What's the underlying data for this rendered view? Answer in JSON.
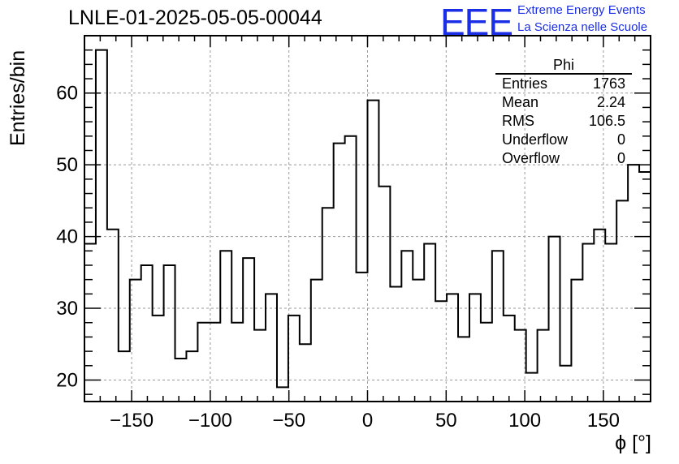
{
  "header": {
    "title": "LNLE-01-2025-05-05-00044",
    "logo_text": "EEE",
    "logo_line1": "Extreme Energy Events",
    "logo_line2": "La Scienza nelle Scuole"
  },
  "stats_box": {
    "title": "Phi",
    "rows": [
      {
        "label": "Entries",
        "value": "1763"
      },
      {
        "label": "Mean",
        "value": "2.24"
      },
      {
        "label": "RMS",
        "value": "106.5"
      },
      {
        "label": "Underflow",
        "value": "0"
      },
      {
        "label": "Overflow",
        "value": "0"
      }
    ]
  },
  "chart_data": {
    "type": "bar",
    "title": "LNLE-01-2025-05-05-00044",
    "xlabel": "ϕ [°]",
    "ylabel": "Entries/bin",
    "xlim": [
      -180,
      180
    ],
    "ylim": [
      17,
      68
    ],
    "grid": true,
    "bin_width": 7.2,
    "x_ticks": [
      -150,
      -100,
      -50,
      0,
      50,
      100,
      150
    ],
    "y_ticks": [
      20,
      30,
      40,
      50,
      60
    ],
    "values": [
      39,
      66,
      41,
      24,
      34,
      36,
      29,
      36,
      23,
      24,
      28,
      28,
      38,
      28,
      37,
      27,
      32,
      19,
      29,
      25,
      34,
      44,
      53,
      54,
      35,
      59,
      47,
      33,
      38,
      34,
      39,
      31,
      32,
      26,
      32,
      28,
      38,
      29,
      27,
      21,
      27,
      40,
      22,
      34,
      39,
      41,
      39,
      45,
      50,
      49
    ],
    "color": "#000000"
  }
}
